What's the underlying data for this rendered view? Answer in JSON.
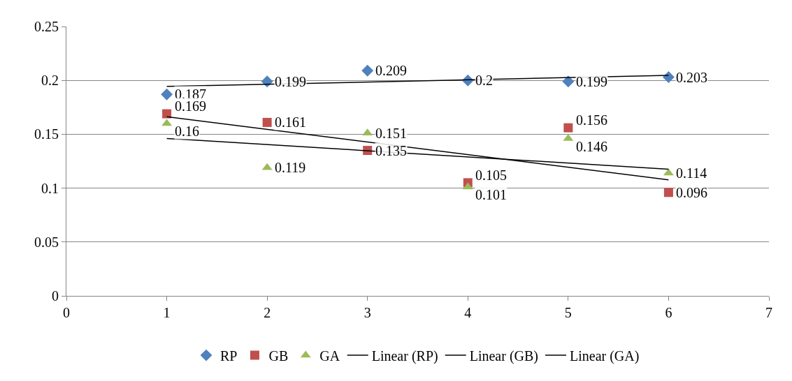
{
  "chart_data": {
    "type": "scatter",
    "xlim": [
      0,
      7
    ],
    "xticks": [
      0,
      1,
      2,
      3,
      4,
      5,
      6,
      7
    ],
    "ylim": [
      0,
      0.25
    ],
    "yticks": [
      0,
      0.05,
      0.1,
      0.15,
      0.2,
      0.25
    ],
    "grid": "y",
    "legend": "bottom",
    "series": [
      {
        "name": "RP",
        "color": "#4f81bd",
        "marker": "diamond",
        "x": [
          1,
          2,
          3,
          4,
          5,
          6
        ],
        "values": [
          0.187,
          0.199,
          0.209,
          0.2,
          0.199,
          0.203
        ],
        "value_labels": [
          "0.187",
          "0.199",
          "0.209",
          "0.2",
          "0.199",
          "0.203"
        ]
      },
      {
        "name": "GB",
        "color": "#c0504d",
        "marker": "square",
        "x": [
          1,
          2,
          3,
          4,
          5,
          6
        ],
        "values": [
          0.169,
          0.161,
          0.135,
          0.105,
          0.156,
          0.096
        ],
        "value_labels": [
          "0.169",
          "0.161",
          "0.135",
          "0.105",
          "0.156",
          "0.096"
        ]
      },
      {
        "name": "GA",
        "color": "#9bbb59",
        "marker": "triangle",
        "x": [
          1,
          2,
          3,
          4,
          5,
          6
        ],
        "values": [
          0.16,
          0.119,
          0.151,
          0.101,
          0.146,
          0.114
        ],
        "value_labels": [
          "0.16",
          "0.119",
          "0.151",
          "0.101",
          "0.146",
          "0.114"
        ]
      },
      {
        "name": "Linear (RP)",
        "type": "line",
        "color": "#000000",
        "x": [
          1,
          6
        ],
        "values": [
          0.1944,
          0.2046
        ]
      },
      {
        "name": "Linear (GB)",
        "type": "line",
        "color": "#000000",
        "x": [
          1,
          6
        ],
        "values": [
          0.1663,
          0.1077
        ]
      },
      {
        "name": "Linear (GA)",
        "type": "line",
        "color": "#000000",
        "x": [
          1,
          6
        ],
        "values": [
          0.1461,
          0.1176
        ]
      }
    ]
  }
}
